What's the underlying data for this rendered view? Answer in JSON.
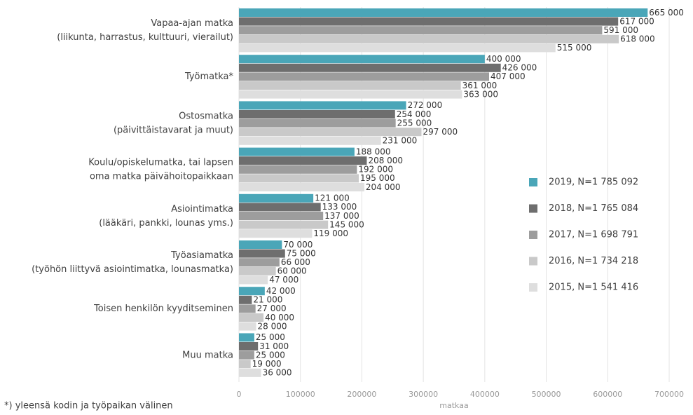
{
  "chart_data": {
    "type": "bar",
    "orientation": "horizontal",
    "categories": [
      [
        "Vapaa-ajan matka",
        "(liikunta, harrastus, kulttuuri, vierailut)"
      ],
      [
        "Työmatka*"
      ],
      [
        "Ostosmatka",
        "(päivittäistavarat ja muut)"
      ],
      [
        "Koulu/opiskelumatka, tai lapsen",
        "oma matka päivähoitopaikkaan"
      ],
      [
        "Asiointimatka",
        "(lääkäri, pankki, lounas yms.)"
      ],
      [
        "Työasiamatka",
        "(työhön liittyvä asiointimatka, lounasmatka)"
      ],
      [
        "Toisen henkilön kyyditseminen"
      ],
      [
        "Muu matka"
      ]
    ],
    "series": [
      {
        "name": "2019, N=1 785 092",
        "color": "#4aa6b8",
        "values": [
          665000,
          400000,
          272000,
          188000,
          121000,
          70000,
          42000,
          25000
        ],
        "value_labels": [
          "665 000",
          "400 000",
          "272 000",
          "188 000",
          "121 000",
          "70 000",
          "42 000",
          "25 000"
        ]
      },
      {
        "name": "2018, N=1 765 084",
        "color": "#6e6e6e",
        "values": [
          617000,
          426000,
          254000,
          208000,
          133000,
          75000,
          21000,
          31000
        ],
        "value_labels": [
          "617 000",
          "426 000",
          "254 000",
          "208 000",
          "133 000",
          "75 000",
          "21 000",
          "31 000"
        ]
      },
      {
        "name": "2017, N=1 698 791",
        "color": "#9d9d9d",
        "values": [
          591000,
          407000,
          255000,
          192000,
          137000,
          66000,
          27000,
          25000
        ],
        "value_labels": [
          "591 000",
          "407 000",
          "255 000",
          "192 000",
          "137 000",
          "66 000",
          "27 000",
          "25 000"
        ]
      },
      {
        "name": "2016, N=1 734 218",
        "color": "#c9c9c9",
        "values": [
          618000,
          361000,
          297000,
          195000,
          145000,
          60000,
          40000,
          19000
        ],
        "value_labels": [
          "618 000",
          "361 000",
          "297 000",
          "195 000",
          "145 000",
          "60 000",
          "40 000",
          "19 000"
        ]
      },
      {
        "name": "2015, N=1 541 416",
        "color": "#dedede",
        "values": [
          515000,
          363000,
          231000,
          204000,
          119000,
          47000,
          28000,
          36000
        ],
        "value_labels": [
          "515 000",
          "363 000",
          "231 000",
          "204 000",
          "119 000",
          "47 000",
          "28 000",
          "36 000"
        ]
      }
    ],
    "xlim": [
      0,
      700000
    ],
    "xticks": [
      0,
      100000,
      200000,
      300000,
      400000,
      500000,
      600000,
      700000
    ],
    "xlabel": "matkaa",
    "grid": true,
    "legend": "right",
    "footnote": "*) yleensä kodin ja työpaikan välinen"
  }
}
